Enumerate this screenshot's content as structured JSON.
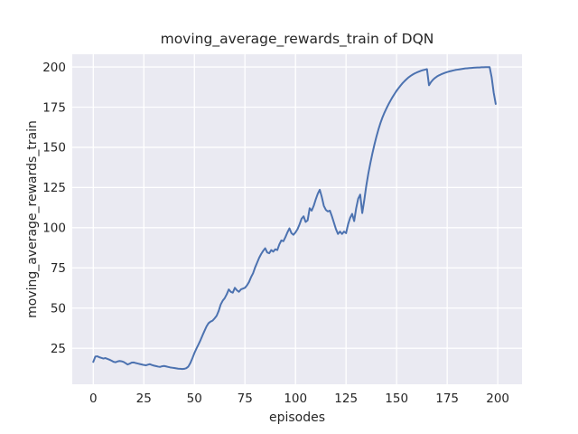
{
  "figure": {
    "background_color": "#ffffff",
    "axes_background_color": "#eaeaf2",
    "grid_color": "#ffffff",
    "line_color": "#4c72b0",
    "text_color": "#262626"
  },
  "chart_data": {
    "type": "line",
    "title": "moving_average_rewards_train of DQN",
    "xlabel": "episodes",
    "ylabel": "moving_average_rewards_train",
    "legend": null,
    "grid": true,
    "xlim": [
      -10.4,
      212.0
    ],
    "ylim": [
      2.6,
      207.9
    ],
    "xticks": [
      0,
      25,
      50,
      75,
      100,
      125,
      150,
      175,
      200
    ],
    "yticks": [
      25,
      50,
      75,
      100,
      125,
      150,
      175,
      200
    ],
    "series": [
      {
        "name": "moving_average_rewards_train of DQN",
        "color": "#4c72b0",
        "x_range": {
          "start": 0,
          "step": 1,
          "count": 200
        },
        "y": [
          16.5,
          19.8,
          20,
          19.4,
          19,
          18.6,
          18.9,
          18.4,
          17.9,
          17.3,
          16.6,
          16.3,
          16.8,
          17.1,
          16.9,
          16.5,
          15.7,
          14.9,
          15.4,
          16.1,
          16.2,
          15.8,
          15.5,
          15.2,
          14.9,
          14.6,
          14.4,
          14.8,
          15.1,
          14.6,
          14.2,
          13.9,
          13.6,
          13.4,
          13.8,
          14,
          13.7,
          13.4,
          13.1,
          12.9,
          12.7,
          12.5,
          12.3,
          12.2,
          12.1,
          12.2,
          12.6,
          13.6,
          15.8,
          18.8,
          22,
          24.8,
          27.3,
          30,
          33,
          35.8,
          38.6,
          40.6,
          41.6,
          42.2,
          43.6,
          45.2,
          48.2,
          52.2,
          54.6,
          56.2,
          58.6,
          61.6,
          60.1,
          59.6,
          62.6,
          61.1,
          60.1,
          61.6,
          62.1,
          62.6,
          64.1,
          66.2,
          69.2,
          71.6,
          75.2,
          78.2,
          81.2,
          83.6,
          85.6,
          87.2,
          84.6,
          84.1,
          86.1,
          85.1,
          86.6,
          86.1,
          89.6,
          92.1,
          91.6,
          94.1,
          97.1,
          99.6,
          96.6,
          95.6,
          97.1,
          99.1,
          102.1,
          105.6,
          107.1,
          103.6,
          104.6,
          112.1,
          110.6,
          113.6,
          117.6,
          121.1,
          123.6,
          119.1,
          113.6,
          111.1,
          110.1,
          110.6,
          107.1,
          103.1,
          99.1,
          96.1,
          97.6,
          96.1,
          97.6,
          96.6,
          102.1,
          106.1,
          108.6,
          104.1,
          112.1,
          118.1,
          120.6,
          109.1,
          117.1,
          126.1,
          133.6,
          140.1,
          146.1,
          151.6,
          156.6,
          161.1,
          165.1,
          168.6,
          171.6,
          174.3,
          176.8,
          179.1,
          181.3,
          183.3,
          185.2,
          186.9,
          188.5,
          190,
          191.3,
          192.5,
          193.6,
          194.5,
          195.3,
          196,
          196.6,
          197.1,
          197.6,
          198,
          198.3,
          198.6,
          188.6,
          190.6,
          192.1,
          193.2,
          194.1,
          194.8,
          195.4,
          195.9,
          196.4,
          196.8,
          197.2,
          197.5,
          197.8,
          198.1,
          198.3,
          198.5,
          198.7,
          198.9,
          199.1,
          199.2,
          199.3,
          199.4,
          199.5,
          199.6,
          199.7,
          199.7,
          199.8,
          199.8,
          199.9,
          199.9,
          199.9,
          193.5,
          184,
          177
        ]
      }
    ]
  }
}
